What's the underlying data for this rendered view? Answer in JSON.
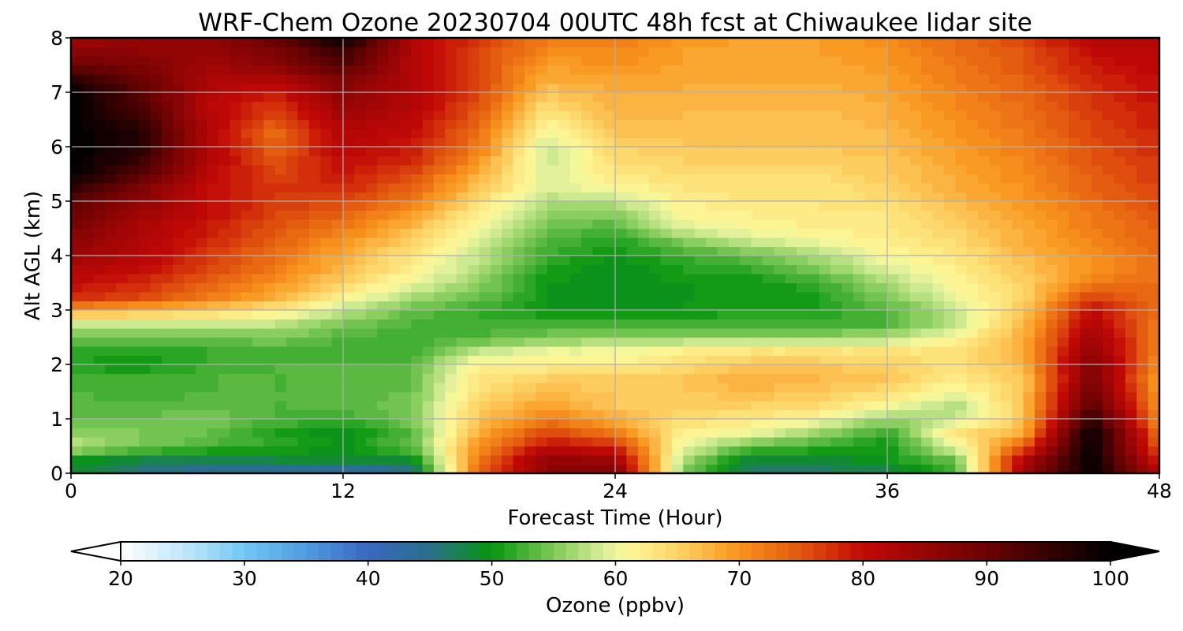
{
  "chart_data": {
    "type": "heatmap",
    "title": "WRF-Chem Ozone  20230704 00UTC 48h fcst at Chiwaukee lidar site",
    "xlabel": "Forecast Time (Hour)",
    "ylabel": "Alt AGL (km)",
    "xlim": [
      0,
      48
    ],
    "ylim": [
      0,
      8
    ],
    "x_ticks": [
      "0",
      "12",
      "24",
      "36",
      "48"
    ],
    "y_ticks": [
      "0",
      "1",
      "2",
      "3",
      "4",
      "5",
      "6",
      "7",
      "8"
    ],
    "grid": true,
    "x_hours": [
      0,
      3,
      6,
      9,
      12,
      15,
      18,
      21,
      24,
      27,
      30,
      33,
      36,
      39,
      42,
      45,
      48
    ],
    "y_km": [
      0,
      0.25,
      0.5,
      0.75,
      1.0,
      1.25,
      1.5,
      1.75,
      2.0,
      2.25,
      2.5,
      2.75,
      3.0,
      3.25,
      3.5,
      3.75,
      4.0,
      4.25,
      4.5,
      4.75,
      5.0,
      5.25,
      5.5,
      5.75,
      6.0,
      6.25,
      6.5,
      6.75,
      7.0,
      7.25,
      7.5,
      7.75,
      8.0
    ],
    "z_ozone_ppbv": [
      [
        48,
        45,
        43,
        42,
        42,
        44,
        74,
        86,
        88,
        55,
        46,
        46,
        47,
        52,
        84,
        100,
        82
      ],
      [
        50,
        48,
        47,
        48,
        48,
        49,
        72,
        86,
        84,
        57,
        48,
        48,
        50,
        54,
        82,
        100,
        78
      ],
      [
        58,
        55,
        53,
        52,
        50,
        54,
        70,
        80,
        78,
        60,
        54,
        52,
        50,
        60,
        74,
        100,
        74
      ],
      [
        56,
        55,
        54,
        51,
        49,
        53,
        68,
        76,
        72,
        62,
        60,
        56,
        52,
        63,
        68,
        100,
        72
      ],
      [
        54,
        54,
        55,
        53,
        52,
        55,
        66,
        72,
        68,
        64,
        63,
        61,
        56,
        58,
        66,
        96,
        70
      ],
      [
        54,
        53,
        54,
        53,
        53,
        55,
        65,
        69,
        66,
        65,
        65,
        64,
        61,
        57,
        66,
        92,
        70
      ],
      [
        53,
        52,
        53,
        53,
        53,
        54,
        64,
        67,
        66,
        66,
        67,
        66,
        64,
        60,
        66,
        90,
        69
      ],
      [
        52,
        52,
        53,
        53,
        53,
        54,
        63,
        65,
        65,
        66,
        68,
        67,
        66,
        62,
        66,
        88,
        69
      ],
      [
        51,
        50,
        52,
        53,
        53,
        53,
        62,
        62,
        62,
        64,
        66,
        66,
        65,
        64,
        67,
        88,
        70
      ],
      [
        52,
        51,
        52,
        53,
        52,
        52,
        58,
        60,
        60,
        62,
        63,
        63,
        63,
        63,
        68,
        86,
        71
      ],
      [
        55,
        54,
        54,
        55,
        53,
        52,
        53,
        55,
        56,
        56,
        56,
        56,
        57,
        61,
        68,
        84,
        72
      ],
      [
        58,
        58,
        58,
        58,
        55,
        53,
        52,
        52,
        52,
        52,
        52,
        52,
        53,
        58,
        67,
        82,
        72
      ],
      [
        70,
        68,
        66,
        63,
        58,
        54,
        52,
        50,
        49,
        50,
        51,
        51,
        53,
        58,
        66,
        80,
        73
      ],
      [
        78,
        76,
        72,
        68,
        62,
        57,
        54,
        50,
        49,
        50,
        50,
        51,
        55,
        60,
        65,
        76,
        73
      ],
      [
        80,
        78,
        74,
        70,
        65,
        60,
        56,
        50,
        49,
        50,
        50,
        52,
        57,
        61,
        65,
        72,
        73
      ],
      [
        82,
        80,
        76,
        72,
        67,
        62,
        57,
        51,
        49,
        51,
        52,
        55,
        59,
        62,
        66,
        70,
        73
      ],
      [
        84,
        82,
        77,
        73,
        68,
        63,
        58,
        52,
        50,
        52,
        54,
        57,
        61,
        63,
        67,
        70,
        73
      ],
      [
        86,
        82,
        78,
        74,
        70,
        65,
        59,
        53,
        51,
        55,
        58,
        60,
        62,
        64,
        68,
        71,
        74
      ],
      [
        88,
        83,
        79,
        75,
        72,
        67,
        60,
        54,
        53,
        59,
        61,
        62,
        63,
        65,
        68,
        72,
        74
      ],
      [
        90,
        84,
        80,
        76,
        74,
        69,
        62,
        56,
        55,
        61,
        62,
        63,
        63,
        66,
        69,
        72,
        75
      ],
      [
        92,
        86,
        80,
        77,
        76,
        72,
        64,
        57,
        58,
        62,
        63,
        63,
        64,
        67,
        70,
        73,
        76
      ],
      [
        96,
        88,
        80,
        77,
        78,
        74,
        66,
        59,
        61,
        63,
        64,
        63,
        65,
        68,
        70,
        74,
        76
      ],
      [
        100,
        92,
        81,
        76,
        79,
        76,
        68,
        59,
        63,
        64,
        64,
        64,
        66,
        68,
        71,
        74,
        77
      ],
      [
        100,
        95,
        82,
        75,
        80,
        78,
        70,
        58,
        64,
        65,
        65,
        65,
        66,
        69,
        71,
        75,
        77
      ],
      [
        100,
        97,
        82,
        74,
        81,
        79,
        72,
        58,
        65,
        66,
        66,
        66,
        67,
        69,
        72,
        75,
        78
      ],
      [
        100,
        97,
        82,
        73,
        82,
        80,
        73,
        60,
        66,
        66,
        66,
        66,
        67,
        70,
        72,
        76,
        78
      ],
      [
        100,
        95,
        82,
        75,
        83,
        81,
        74,
        62,
        67,
        67,
        66,
        66,
        68,
        70,
        73,
        76,
        79
      ],
      [
        100,
        93,
        81,
        77,
        85,
        82,
        75,
        64,
        68,
        67,
        67,
        67,
        68,
        71,
        73,
        77,
        79
      ],
      [
        100,
        92,
        82,
        79,
        86,
        82,
        76,
        66,
        68,
        68,
        67,
        67,
        69,
        71,
        74,
        77,
        80
      ],
      [
        96,
        90,
        83,
        82,
        88,
        82,
        76,
        68,
        69,
        68,
        68,
        68,
        69,
        72,
        74,
        78,
        80
      ],
      [
        90,
        88,
        84,
        86,
        92,
        82,
        76,
        69,
        70,
        69,
        68,
        68,
        70,
        72,
        75,
        79,
        81
      ],
      [
        86,
        86,
        85,
        88,
        95,
        82,
        76,
        71,
        71,
        69,
        68,
        69,
        70,
        73,
        75,
        80,
        81
      ],
      [
        84,
        85,
        86,
        90,
        100,
        82,
        77,
        72,
        72,
        70,
        69,
        69,
        71,
        73,
        76,
        82,
        82
      ]
    ],
    "colorbar": {
      "label": "Ozone  (ppbv)",
      "ticks": [
        "20",
        "30",
        "40",
        "50",
        "60",
        "70",
        "80",
        "90",
        "100"
      ],
      "min": 20,
      "max": 100,
      "step": 1,
      "extend": "both",
      "stops": [
        {
          "v": 20,
          "color": "#ffffff"
        },
        {
          "v": 26,
          "color": "#b4e2fa"
        },
        {
          "v": 30,
          "color": "#70c7f4"
        },
        {
          "v": 35,
          "color": "#4f9ae0"
        },
        {
          "v": 40,
          "color": "#3a68c0"
        },
        {
          "v": 45,
          "color": "#2a6f8a"
        },
        {
          "v": 50,
          "color": "#07960f"
        },
        {
          "v": 53,
          "color": "#4fb43a"
        },
        {
          "v": 56,
          "color": "#94d366"
        },
        {
          "v": 59,
          "color": "#d9ee9a"
        },
        {
          "v": 61,
          "color": "#fdf89a"
        },
        {
          "v": 65,
          "color": "#fdd466"
        },
        {
          "v": 70,
          "color": "#f8941c"
        },
        {
          "v": 75,
          "color": "#e2560e"
        },
        {
          "v": 80,
          "color": "#c10806"
        },
        {
          "v": 90,
          "color": "#6b0203"
        },
        {
          "v": 100,
          "color": "#000000"
        }
      ]
    }
  }
}
